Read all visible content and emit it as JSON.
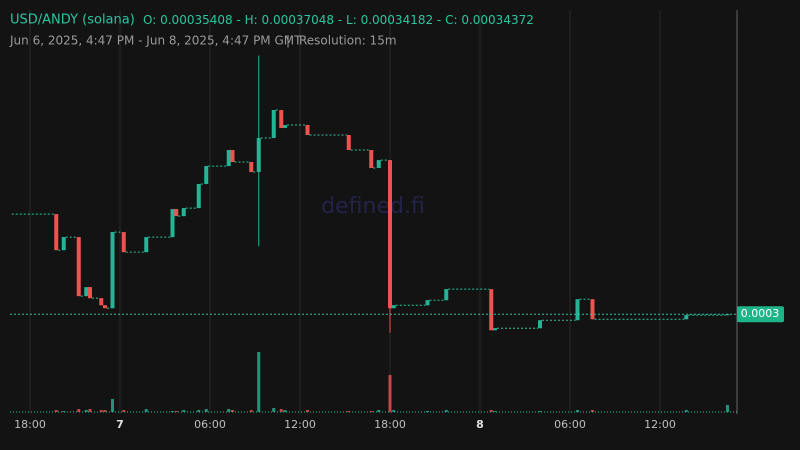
{
  "chart_data": {
    "type": "candlestick",
    "title": "USD/ANDY (solana)",
    "ohlc": [
      {
        "label": "O:",
        "value": 0.00035408
      },
      {
        "label": "H:",
        "value": 0.00037048
      },
      {
        "label": "L:",
        "value": 0.00034182
      },
      {
        "label": "C:",
        "value": 0.00034372
      }
    ],
    "range_text": "Jun 6, 2025, 4:47 PM - Jun 8, 2025, 4:47 PM GMT",
    "resolution": "Resolution: 15m",
    "watermark": "defined.fi",
    "last_price_label": "0.0003",
    "up_color": "#26b496",
    "down_color": "#ef5350",
    "x": [
      "2025-06-06T19:45",
      "2025-06-06T20:15",
      "2025-06-06T21:15",
      "2025-06-06T21:45",
      "2025-06-06T22:00",
      "2025-06-06T22:45",
      "2025-06-06T23:00",
      "2025-06-06T23:30",
      "2025-06-07T00:15",
      "2025-06-07T01:45",
      "2025-06-07T03:30",
      "2025-06-07T03:45",
      "2025-06-07T04:15",
      "2025-06-07T05:15",
      "2025-06-07T05:45",
      "2025-06-07T07:15",
      "2025-06-07T07:30",
      "2025-06-07T08:45",
      "2025-06-07T09:15",
      "2025-06-07T10:15",
      "2025-06-07T10:45",
      "2025-06-07T11:00",
      "2025-06-07T12:30",
      "2025-06-07T15:15",
      "2025-06-07T16:45",
      "2025-06-07T17:15",
      "2025-06-07T18:00",
      "2025-06-07T18:15",
      "2025-06-07T20:30",
      "2025-06-07T21:45",
      "2025-06-08T00:45",
      "2025-06-08T01:00",
      "2025-06-08T04:00",
      "2025-06-08T06:30",
      "2025-06-08T07:30",
      "2025-06-08T13:45",
      "2025-06-08T16:30"
    ],
    "open": [
      0.00035408,
      0.00035035,
      0.0003517,
      0.00034559,
      0.00034652,
      0.00034538,
      0.00034465,
      0.00034434,
      0.00035222,
      0.00035014,
      0.0003517,
      0.0003546,
      0.00035387,
      0.0003547,
      0.00035719,
      0.00035905,
      0.00036071,
      0.00035947,
      0.00035843,
      0.00036195,
      0.00036485,
      0.00036299,
      0.0003633,
      0.00036226,
      0.00036071,
      0.00035885,
      0.00035967,
      0.00034434,
      0.00034465,
      0.00034517,
      0.00034631,
      0.00034206,
      0.00034227,
      0.0003431,
      0.00034527,
      0.0003432,
      0.00034362
    ],
    "high": [
      0.00035408,
      0.0003517,
      0.0003517,
      0.00034652,
      0.00034652,
      0.00034538,
      0.00034465,
      0.00035222,
      0.00035222,
      0.0003517,
      0.0003546,
      0.0003546,
      0.0003547,
      0.00035719,
      0.00035905,
      0.00036071,
      0.00036071,
      0.00035947,
      0.00037048,
      0.00036485,
      0.00036485,
      0.0003633,
      0.0003633,
      0.00036226,
      0.00036071,
      0.00035967,
      0.00035967,
      0.00034465,
      0.00034517,
      0.00034631,
      0.00034631,
      0.00034227,
      0.0003431,
      0.00034527,
      0.00034527,
      0.00034362,
      0.00034372
    ],
    "low": [
      0.00035035,
      0.00035035,
      0.00034559,
      0.00034559,
      0.00034538,
      0.00034465,
      0.00034434,
      0.00034434,
      0.00035014,
      0.00035014,
      0.0003517,
      0.00035387,
      0.00035387,
      0.0003547,
      0.00035719,
      0.00035905,
      0.00035947,
      0.00035843,
      0.00035076,
      0.00036195,
      0.00036299,
      0.00036299,
      0.00036226,
      0.00036071,
      0.00035885,
      0.00035885,
      0.00034182,
      0.00034434,
      0.00034465,
      0.00034517,
      0.00034206,
      0.00034206,
      0.00034227,
      0.0003431,
      0.0003432,
      0.0003432,
      0.00034362
    ],
    "close": [
      0.00035035,
      0.0003517,
      0.00034559,
      0.00034652,
      0.00034538,
      0.00034465,
      0.00034434,
      0.00035222,
      0.00035014,
      0.0003517,
      0.0003546,
      0.00035387,
      0.0003547,
      0.00035719,
      0.00035905,
      0.00036071,
      0.00035947,
      0.00035843,
      0.00036195,
      0.00036485,
      0.00036299,
      0.0003633,
      0.00036226,
      0.00036071,
      0.00035885,
      0.00035967,
      0.00034434,
      0.00034465,
      0.00034517,
      0.00034631,
      0.00034206,
      0.00034227,
      0.0003431,
      0.00034527,
      0.0003432,
      0.00034362,
      0.00034372
    ],
    "volume": [
      2,
      1,
      3,
      2,
      3,
      2,
      2,
      13,
      2,
      3,
      1,
      1,
      2,
      2,
      3,
      3,
      2,
      2,
      60,
      4,
      3,
      2,
      2,
      1,
      1,
      2,
      37,
      2,
      1,
      2,
      2,
      1,
      1,
      2,
      2,
      2,
      7
    ],
    "xlim": [
      "2025-06-06T16:47",
      "2025-06-08T16:47"
    ],
    "ylim": [
      0.0003336,
      0.0003752
    ],
    "volume_lim": [
      0,
      100
    ],
    "xticks": [
      {
        "value": "2025-06-06T18:00",
        "label": "18:00"
      },
      {
        "value": "2025-06-07T00:00",
        "label": "7"
      },
      {
        "value": "2025-06-07T06:00",
        "label": "06:00"
      },
      {
        "value": "2025-06-07T12:00",
        "label": "12:00"
      },
      {
        "value": "2025-06-07T18:00",
        "label": "18:00"
      },
      {
        "value": "2025-06-08T00:00",
        "label": "8"
      },
      {
        "value": "2025-06-08T06:00",
        "label": "06:00"
      },
      {
        "value": "2025-06-08T12:00",
        "label": "12:00"
      }
    ],
    "grid": true
  }
}
